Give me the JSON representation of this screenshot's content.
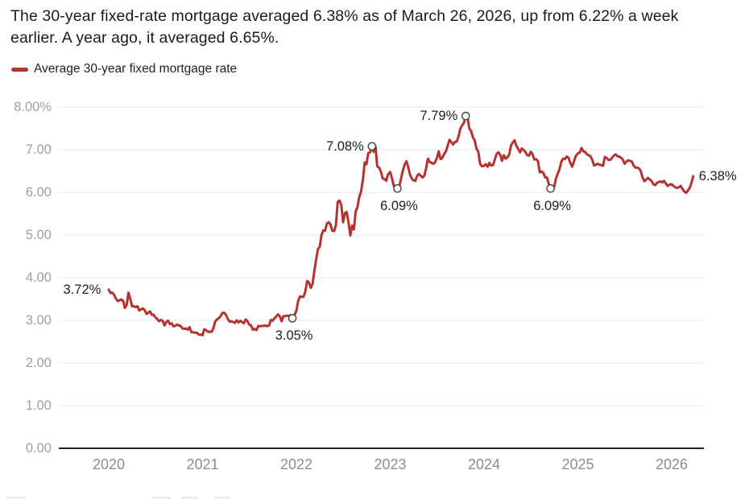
{
  "headline": "The 30-year fixed-rate mortgage averaged 6.38% as of March 26, 2026, up from 6.22% a week earlier. A year ago, it averaged 6.65%.",
  "legend": {
    "label": "Average 30-year fixed mortgage rate",
    "color": "#b43330"
  },
  "colors": {
    "line": "#b43330",
    "grid": "#e8e8e8",
    "axis": "#212121",
    "y_label": "#9f9f9f",
    "x_label": "#8d8d8d",
    "annotation": "#1e1e1e",
    "marker_stroke": "#3f3f3f",
    "marker_fill": "#ffffff"
  },
  "chart_data": {
    "type": "line",
    "title": "Average 30-year fixed mortgage rate over time",
    "unit": "%",
    "ylim": [
      0,
      8
    ],
    "xlim": [
      2019.47,
      2026.35
    ],
    "grid": true,
    "legend_position": "top-left",
    "y_ticks": [
      {
        "label": "8.00%",
        "value": 8
      },
      {
        "label": "7.00",
        "value": 7
      },
      {
        "label": "6.00",
        "value": 6
      },
      {
        "label": "5.00",
        "value": 5
      },
      {
        "label": "4.00",
        "value": 4
      },
      {
        "label": "3.00",
        "value": 3
      },
      {
        "label": "2.00",
        "value": 2
      },
      {
        "label": "1.00",
        "value": 1
      },
      {
        "label": "0.00",
        "value": 0
      }
    ],
    "x_ticks": [
      {
        "label": "2020",
        "year": 2020
      },
      {
        "label": "2021",
        "year": 2021
      },
      {
        "label": "2022",
        "year": 2022
      },
      {
        "label": "2023",
        "year": 2023
      },
      {
        "label": "2024",
        "year": 2024
      },
      {
        "label": "2025",
        "year": 2025
      },
      {
        "label": "2026",
        "year": 2026
      }
    ],
    "annotations": [
      {
        "text": "3.72%",
        "year": 2020.003,
        "value": 3.72,
        "placement": "left",
        "marker": false
      },
      {
        "text": "3.05%",
        "year": 2021.958,
        "value": 3.05,
        "placement": "below",
        "marker": true
      },
      {
        "text": "7.08%",
        "year": 2022.805,
        "value": 7.08,
        "placement": "left",
        "marker": true
      },
      {
        "text": "6.09%",
        "year": 2023.077,
        "value": 6.09,
        "placement": "below",
        "marker": true
      },
      {
        "text": "7.79%",
        "year": 2023.805,
        "value": 7.79,
        "placement": "left",
        "marker": true
      },
      {
        "text": "6.09%",
        "year": 2024.709,
        "value": 6.09,
        "placement": "below",
        "marker": true
      },
      {
        "text": "6.38%",
        "year": 2026.23,
        "value": 6.38,
        "placement": "right",
        "marker": false
      }
    ],
    "series": [
      {
        "name": "Average 30-year fixed mortgage rate",
        "weekly_values_by_year": {
          "2020": [
            3.72,
            3.64,
            3.65,
            3.6,
            3.51,
            3.45,
            3.47,
            3.49,
            3.45,
            3.29,
            3.36,
            3.65,
            3.5,
            3.33,
            3.33,
            3.31,
            3.33,
            3.23,
            3.26,
            3.28,
            3.24,
            3.15,
            3.18,
            3.21,
            3.13,
            3.13,
            3.07,
            3.03,
            2.98,
            3.01,
            2.99,
            2.88,
            2.96,
            2.99,
            2.91,
            2.93,
            2.86,
            2.87,
            2.9,
            2.88,
            2.87,
            2.81,
            2.8,
            2.81,
            2.78,
            2.84,
            2.72,
            2.72,
            2.71,
            2.71,
            2.67,
            2.66,
            2.67
          ],
          "2021": [
            2.65,
            2.79,
            2.77,
            2.73,
            2.73,
            2.73,
            2.81,
            2.97,
            3.02,
            3.05,
            3.09,
            3.17,
            3.18,
            3.13,
            3.04,
            2.97,
            2.98,
            2.96,
            2.94,
            3.0,
            2.95,
            2.99,
            2.96,
            2.93,
            3.02,
            2.98,
            2.9,
            2.88,
            2.78,
            2.8,
            2.77,
            2.87,
            2.86,
            2.87,
            2.87,
            2.88,
            2.86,
            2.88,
            3.01,
            2.99,
            3.05,
            3.09,
            3.14,
            3.09,
            2.98,
            3.1,
            3.1,
            3.11,
            3.1,
            3.12,
            3.05,
            3.11
          ],
          "2022": [
            3.22,
            3.45,
            3.56,
            3.55,
            3.55,
            3.69,
            3.92,
            3.89,
            3.76,
            3.85,
            4.16,
            4.42,
            4.67,
            4.72,
            5.0,
            5.11,
            5.1,
            5.27,
            5.3,
            5.25,
            5.1,
            5.09,
            5.23,
            5.78,
            5.81,
            5.7,
            5.3,
            5.51,
            5.54,
            5.3,
            4.99,
            5.22,
            5.13,
            5.55,
            5.66,
            5.89,
            6.02,
            6.29,
            6.7,
            6.66,
            6.92,
            6.94,
            7.08,
            6.95,
            7.08,
            6.61,
            6.58,
            6.49,
            6.33,
            6.31,
            6.27,
            6.42
          ],
          "2023": [
            6.48,
            6.33,
            6.15,
            6.13,
            6.09,
            6.12,
            6.32,
            6.5,
            6.65,
            6.73,
            6.6,
            6.42,
            6.32,
            6.28,
            6.27,
            6.39,
            6.43,
            6.39,
            6.35,
            6.39,
            6.57,
            6.79,
            6.71,
            6.69,
            6.67,
            6.71,
            6.81,
            6.96,
            6.78,
            6.81,
            6.9,
            6.96,
            7.09,
            7.23,
            7.18,
            7.12,
            7.18,
            7.19,
            7.31,
            7.49,
            7.57,
            7.63,
            7.79,
            7.76,
            7.5,
            7.44,
            7.29,
            7.22,
            7.03,
            6.95,
            6.67,
            6.61
          ],
          "2024": [
            6.62,
            6.66,
            6.6,
            6.69,
            6.63,
            6.64,
            6.77,
            6.9,
            6.94,
            6.88,
            6.74,
            6.87,
            6.79,
            6.82,
            6.88,
            7.1,
            7.17,
            7.22,
            7.09,
            7.02,
            6.94,
            7.03,
            6.99,
            6.95,
            6.87,
            6.86,
            6.95,
            6.89,
            6.77,
            6.78,
            6.73,
            6.47,
            6.49,
            6.46,
            6.35,
            6.35,
            6.2,
            6.09,
            6.08,
            6.12,
            6.32,
            6.44,
            6.54,
            6.72,
            6.79,
            6.78,
            6.84,
            6.81,
            6.69,
            6.6,
            6.72,
            6.85
          ],
          "2025": [
            6.91,
            6.93,
            7.04,
            6.96,
            6.95,
            6.89,
            6.87,
            6.85,
            6.76,
            6.63,
            6.65,
            6.67,
            6.65,
            6.64,
            6.62,
            6.83,
            6.81,
            6.76,
            6.76,
            6.81,
            6.86,
            6.89,
            6.85,
            6.84,
            6.81,
            6.77,
            6.67,
            6.72,
            6.75,
            6.74,
            6.72,
            6.63,
            6.58,
            6.58,
            6.56,
            6.5,
            6.35,
            6.26,
            6.3,
            6.34,
            6.3,
            6.27,
            6.19,
            6.17,
            6.22,
            6.24,
            6.26,
            6.23,
            6.27,
            6.2,
            6.15,
            6.18
          ],
          "2026": [
            6.19,
            6.15,
            6.12,
            6.1,
            6.12,
            6.15,
            6.08,
            6.02,
            5.99,
            6.04,
            6.1,
            6.22,
            6.38
          ]
        }
      }
    ]
  }
}
